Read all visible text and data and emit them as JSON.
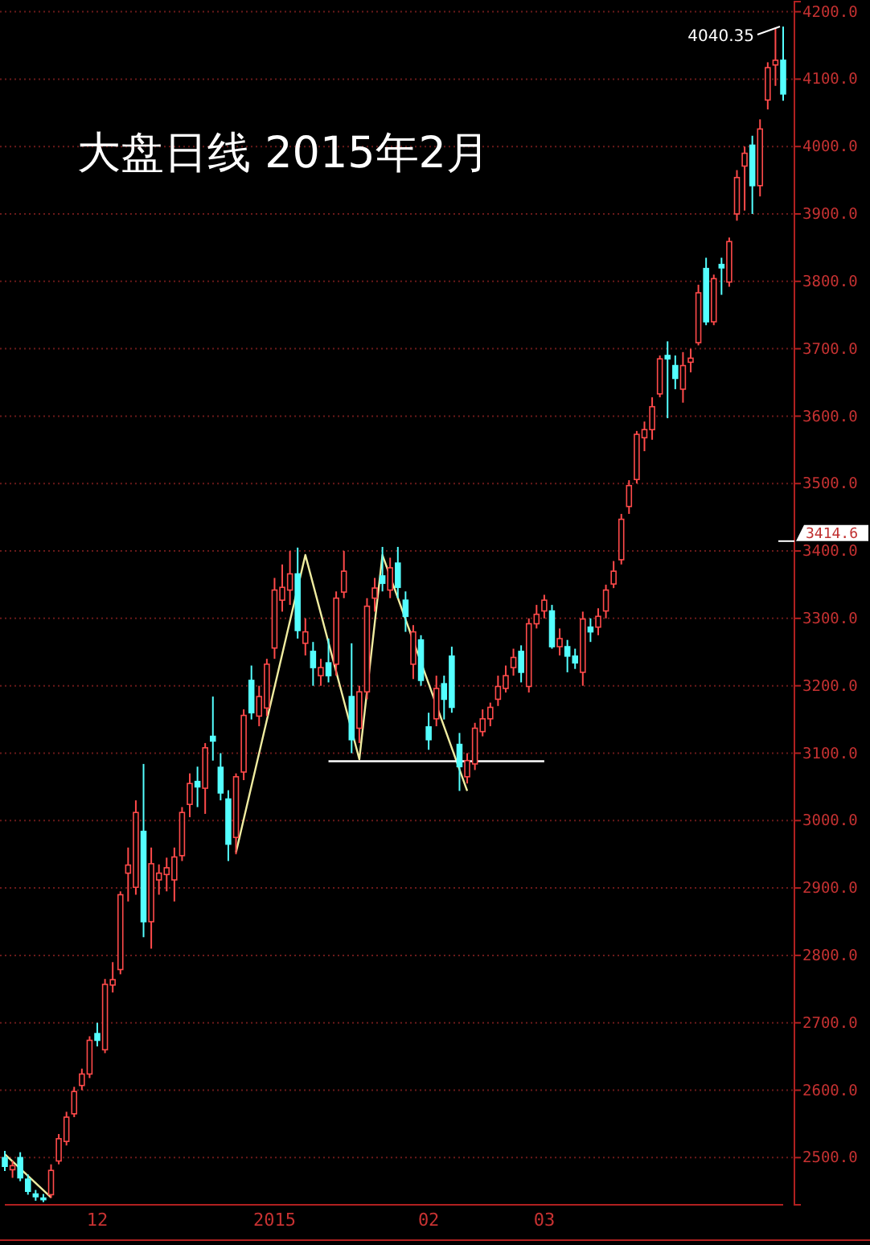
{
  "chart_data": {
    "type": "candlestick",
    "title": "大盘日线 2015年2月",
    "categories": [
      null,
      null,
      null,
      null,
      null,
      null,
      null,
      null,
      null,
      null,
      null,
      null,
      "12",
      null,
      null,
      null,
      null,
      null,
      null,
      null,
      null,
      null,
      null,
      null,
      null,
      null,
      null,
      null,
      null,
      null,
      null,
      null,
      null,
      null,
      null,
      "2015",
      null,
      null,
      null,
      null,
      null,
      null,
      null,
      null,
      null,
      null,
      null,
      null,
      null,
      null,
      null,
      null,
      null,
      null,
      null,
      "02",
      null,
      null,
      null,
      null,
      null,
      null,
      null,
      null,
      null,
      null,
      null,
      null,
      null,
      null,
      "03",
      null,
      null,
      null,
      null,
      null,
      null,
      null,
      null,
      null,
      null,
      null,
      null,
      null,
      null,
      null,
      null,
      null,
      null,
      null,
      null,
      null,
      null,
      null,
      null,
      null,
      null,
      null,
      null,
      null,
      null,
      null
    ],
    "ohlc": [
      [
        2500,
        2510,
        2480,
        2487
      ],
      [
        2482,
        2495,
        2470,
        2488
      ],
      [
        2500,
        2508,
        2465,
        2470
      ],
      [
        2468,
        2475,
        2445,
        2450
      ],
      [
        2446,
        2452,
        2436,
        2442
      ],
      [
        2440,
        2446,
        2434,
        2438
      ],
      [
        2445,
        2490,
        2440,
        2481
      ],
      [
        2495,
        2535,
        2490,
        2528
      ],
      [
        2524,
        2568,
        2518,
        2560
      ],
      [
        2565,
        2605,
        2560,
        2598
      ],
      [
        2607,
        2632,
        2600,
        2624
      ],
      [
        2624,
        2680,
        2618,
        2674
      ],
      [
        2684,
        2700,
        2665,
        2674
      ],
      [
        2660,
        2765,
        2655,
        2757
      ],
      [
        2756,
        2790,
        2745,
        2764
      ],
      [
        2779,
        2895,
        2772,
        2890
      ],
      [
        2922,
        2960,
        2880,
        2934
      ],
      [
        2901,
        3030,
        2890,
        3012
      ],
      [
        2984,
        3084,
        2827,
        2850
      ],
      [
        2850,
        2960,
        2810,
        2936
      ],
      [
        2912,
        2935,
        2890,
        2922
      ],
      [
        2920,
        2945,
        2895,
        2930
      ],
      [
        2912,
        2960,
        2880,
        2946
      ],
      [
        2948,
        3020,
        2940,
        3012
      ],
      [
        3024,
        3070,
        3005,
        3055
      ],
      [
        3058,
        3080,
        3020,
        3050
      ],
      [
        3048,
        3115,
        3010,
        3108
      ],
      [
        3125,
        3184,
        3089,
        3118
      ],
      [
        3079,
        3100,
        3030,
        3041
      ],
      [
        3032,
        3045,
        2940,
        2965
      ],
      [
        2975,
        3070,
        2950,
        3065
      ],
      [
        3072,
        3165,
        3060,
        3156
      ],
      [
        3208,
        3230,
        3150,
        3160
      ],
      [
        3155,
        3200,
        3140,
        3184
      ],
      [
        3167,
        3240,
        3155,
        3232
      ],
      [
        3256,
        3360,
        3240,
        3342
      ],
      [
        3327,
        3380,
        3310,
        3346
      ],
      [
        3342,
        3400,
        3320,
        3366
      ],
      [
        3366,
        3405,
        3270,
        3282
      ],
      [
        3263,
        3300,
        3245,
        3280
      ],
      [
        3251,
        3265,
        3200,
        3227
      ],
      [
        3215,
        3240,
        3200,
        3227
      ],
      [
        3234,
        3270,
        3205,
        3215
      ],
      [
        3232,
        3340,
        3215,
        3330
      ],
      [
        3339,
        3400,
        3330,
        3370
      ],
      [
        3184,
        3263,
        3100,
        3120
      ],
      [
        3137,
        3200,
        3115,
        3191
      ],
      [
        3191,
        3330,
        3180,
        3318
      ],
      [
        3330,
        3360,
        3310,
        3345
      ],
      [
        3363,
        3406,
        3340,
        3352
      ],
      [
        3342,
        3390,
        3330,
        3375
      ],
      [
        3382,
        3406,
        3330,
        3346
      ],
      [
        3327,
        3340,
        3280,
        3303
      ],
      [
        3232,
        3290,
        3210,
        3280
      ],
      [
        3268,
        3275,
        3200,
        3208
      ],
      [
        3139,
        3160,
        3105,
        3120
      ],
      [
        3151,
        3215,
        3140,
        3196
      ],
      [
        3203,
        3215,
        3150,
        3180
      ],
      [
        3244,
        3258,
        3160,
        3168
      ],
      [
        3113,
        3130,
        3044,
        3080
      ],
      [
        3065,
        3100,
        3055,
        3089
      ],
      [
        3084,
        3145,
        3075,
        3137
      ],
      [
        3132,
        3165,
        3125,
        3151
      ],
      [
        3151,
        3175,
        3140,
        3168
      ],
      [
        3180,
        3215,
        3170,
        3199
      ],
      [
        3196,
        3230,
        3190,
        3215
      ],
      [
        3227,
        3255,
        3215,
        3242
      ],
      [
        3251,
        3260,
        3205,
        3220
      ],
      [
        3199,
        3300,
        3190,
        3292
      ],
      [
        3292,
        3320,
        3285,
        3306
      ],
      [
        3311,
        3335,
        3300,
        3327
      ],
      [
        3311,
        3320,
        3255,
        3258
      ],
      [
        3258,
        3285,
        3245,
        3270
      ],
      [
        3258,
        3268,
        3220,
        3244
      ],
      [
        3244,
        3255,
        3225,
        3234
      ],
      [
        3220,
        3310,
        3200,
        3299
      ],
      [
        3287,
        3300,
        3265,
        3280
      ],
      [
        3287,
        3315,
        3275,
        3303
      ],
      [
        3311,
        3350,
        3300,
        3342
      ],
      [
        3351,
        3385,
        3345,
        3370
      ],
      [
        3387,
        3455,
        3380,
        3447
      ],
      [
        3466,
        3505,
        3455,
        3497
      ],
      [
        3506,
        3578,
        3500,
        3573
      ],
      [
        3568,
        3592,
        3548,
        3580
      ],
      [
        3580,
        3628,
        3565,
        3614
      ],
      [
        3633,
        3690,
        3628,
        3685
      ],
      [
        3690,
        3711,
        3597,
        3685
      ],
      [
        3675,
        3690,
        3640,
        3656
      ],
      [
        3640,
        3695,
        3620,
        3675
      ],
      [
        3680,
        3700,
        3665,
        3686
      ],
      [
        3709,
        3795,
        3705,
        3783
      ],
      [
        3819,
        3835,
        3735,
        3740
      ],
      [
        3740,
        3810,
        3735,
        3804
      ],
      [
        3825,
        3835,
        3780,
        3820
      ],
      [
        3799,
        3865,
        3792,
        3859
      ],
      [
        3900,
        3965,
        3890,
        3954
      ],
      [
        3971,
        4000,
        3905,
        3990
      ],
      [
        4002,
        4016,
        3900,
        3942
      ],
      [
        3942,
        4040.35,
        3926,
        4026
      ],
      [
        4069,
        4125,
        4055,
        4117
      ],
      [
        4121,
        4175,
        4090,
        4128
      ],
      [
        4128,
        4178,
        4068,
        4078
      ]
    ],
    "series": [
      {
        "type": "line",
        "color": "#f0eca0",
        "values": [
          null,
          null,
          null,
          null,
          null,
          null,
          null,
          null,
          null,
          null,
          null,
          null,
          null,
          null,
          null,
          null,
          null,
          null,
          null,
          null,
          null,
          null,
          null,
          null,
          null,
          null,
          null,
          null,
          null,
          null,
          2953,
          null,
          null,
          null,
          null,
          null,
          null,
          null,
          null,
          3394,
          null,
          null,
          null,
          null,
          null,
          null,
          3091,
          null,
          null,
          3394,
          null,
          null,
          null,
          null,
          null,
          null,
          null,
          null,
          null,
          null,
          3044,
          null,
          null,
          null,
          null,
          null,
          null,
          null,
          null,
          null,
          null,
          null,
          null,
          null,
          null,
          null,
          null,
          null,
          null,
          null,
          null,
          null,
          null,
          null,
          null,
          null,
          null,
          null,
          null,
          null,
          null,
          null,
          null,
          null,
          null,
          null,
          null,
          null,
          null,
          null,
          null,
          null
        ]
      },
      {
        "type": "line",
        "color": "#ffffff",
        "values": [
          null,
          null,
          null,
          null,
          null,
          null,
          null,
          null,
          null,
          null,
          null,
          null,
          null,
          null,
          null,
          null,
          null,
          null,
          null,
          null,
          null,
          null,
          null,
          null,
          null,
          null,
          null,
          null,
          null,
          null,
          null,
          null,
          null,
          null,
          null,
          null,
          null,
          null,
          null,
          null,
          null,
          null,
          3088,
          null,
          null,
          null,
          null,
          null,
          null,
          null,
          null,
          null,
          null,
          null,
          null,
          null,
          null,
          null,
          null,
          null,
          null,
          null,
          null,
          null,
          null,
          null,
          null,
          null,
          null,
          null,
          3088,
          null,
          null,
          null,
          null,
          null,
          null,
          null,
          null,
          null,
          null,
          null,
          null,
          null,
          null,
          null,
          null,
          null,
          null,
          null,
          null,
          null,
          null,
          null,
          null,
          null,
          null,
          null,
          null,
          null,
          null,
          null
        ]
      },
      {
        "type": "line",
        "color": "#f0eca0",
        "values": [
          2505,
          null,
          null,
          null,
          null,
          null,
          2441,
          null,
          null,
          null,
          null,
          null,
          null,
          null,
          null,
          null,
          null,
          null,
          null,
          null,
          null,
          null,
          null,
          null,
          null,
          null,
          null,
          null,
          null,
          null,
          null,
          null,
          null,
          null,
          null,
          null,
          null,
          null,
          null,
          null,
          null,
          null,
          null,
          null,
          null,
          null,
          null,
          null,
          null,
          null,
          null,
          null,
          null,
          null,
          null,
          null,
          null,
          null,
          null,
          null,
          null,
          null,
          null,
          null,
          null,
          null,
          null,
          null,
          null,
          null,
          null,
          null,
          null,
          null,
          null,
          null,
          null,
          null,
          null,
          null,
          null,
          null,
          null,
          null,
          null,
          null,
          null,
          null,
          null,
          null,
          null,
          null,
          null,
          null,
          null,
          null,
          null,
          null,
          null,
          null,
          null,
          null
        ]
      }
    ],
    "ref_lines": [
      {
        "axis": "y",
        "value": 3414.6,
        "label": "3414.6",
        "color": "#ffffff"
      }
    ],
    "ylim": [
      2430,
      4215
    ],
    "yticks": [
      {
        "value": 2500,
        "label": "2500.0"
      },
      {
        "value": 2600,
        "label": "2600.0"
      },
      {
        "value": 2700,
        "label": "2700.0"
      },
      {
        "value": 2800,
        "label": "2800.0"
      },
      {
        "value": 2900,
        "label": "2900.0"
      },
      {
        "value": 3000,
        "label": "3000.0"
      },
      {
        "value": 3100,
        "label": "3100.0"
      },
      {
        "value": 3200,
        "label": "3200.0"
      },
      {
        "value": 3300,
        "label": "3300.0"
      },
      {
        "value": 3400,
        "label": "3400.0"
      },
      {
        "value": 3500,
        "label": "3500.0"
      },
      {
        "value": 3600,
        "label": "3600.0"
      },
      {
        "value": 3700,
        "label": "3700.0"
      },
      {
        "value": 3800,
        "label": "3800.0"
      },
      {
        "value": 3900,
        "label": "3900.0"
      },
      {
        "value": 4000,
        "label": "4000.0"
      },
      {
        "value": 4100,
        "label": "4100.0"
      },
      {
        "value": 4200,
        "label": "4200.0"
      }
    ],
    "grid": "y",
    "annotations": [
      "4040.35"
    ]
  }
}
